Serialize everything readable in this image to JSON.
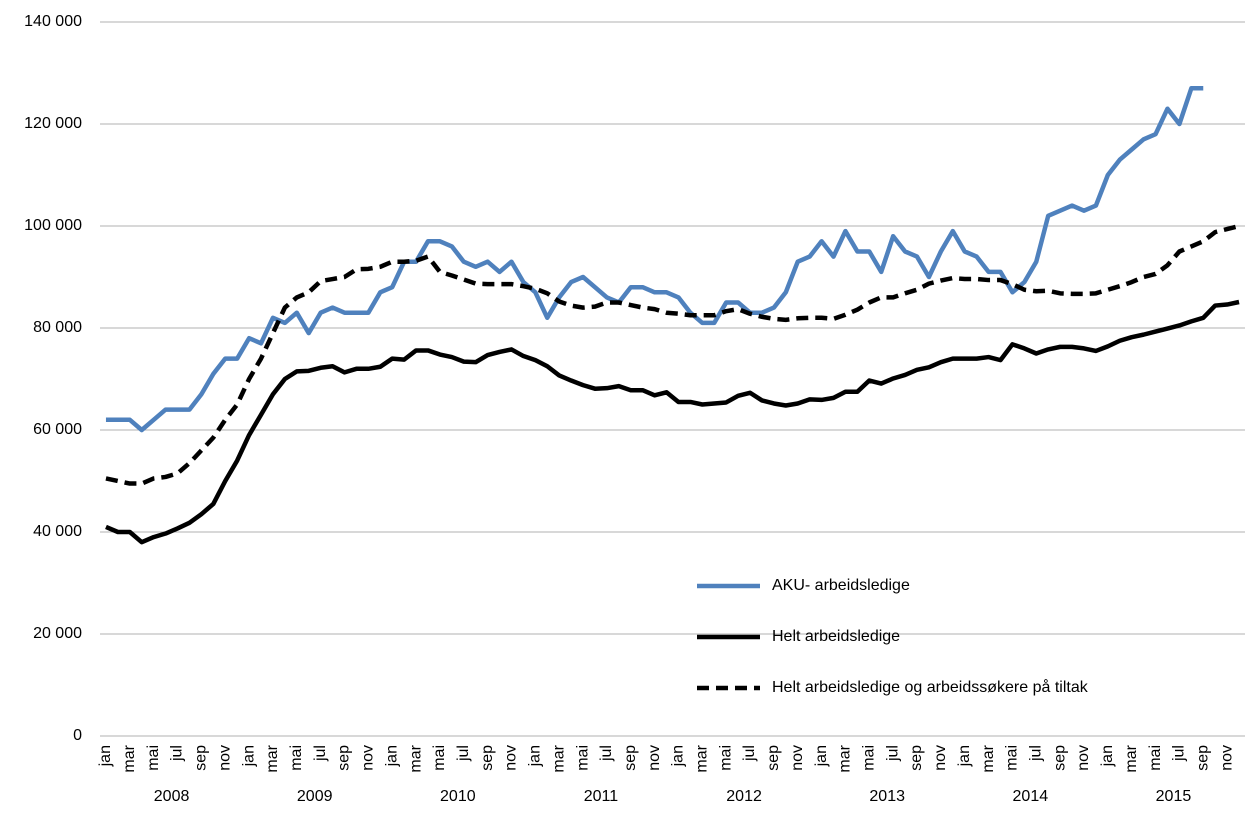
{
  "chart_data": {
    "type": "line",
    "categories": [
      "jan",
      null,
      "mar",
      null,
      "mai",
      null,
      "jul",
      null,
      "sep",
      null,
      "nov",
      null,
      "jan",
      null,
      "mar",
      null,
      "mai",
      null,
      "jul",
      null,
      "sep",
      null,
      "nov",
      null,
      "jan",
      null,
      "mar",
      null,
      "mai",
      null,
      "jul",
      null,
      "sep",
      null,
      "nov",
      null,
      "jan",
      null,
      "mar",
      null,
      "mai",
      null,
      "jul",
      null,
      "sep",
      null,
      "nov",
      null,
      "jan",
      null,
      "mar",
      null,
      "mai",
      null,
      "jul",
      null,
      "sep",
      null,
      "nov",
      null,
      "jan",
      null,
      "mar",
      null,
      "mai",
      null,
      "jul",
      null,
      "sep",
      null,
      "nov",
      null,
      "jan",
      null,
      "mar",
      null,
      "mai",
      null,
      "jul",
      null,
      "sep",
      null,
      "nov",
      null,
      "jan",
      null,
      "mar",
      null,
      "mai",
      null,
      "jul",
      null,
      "sep",
      null,
      "nov",
      null
    ],
    "groups": [
      "2008",
      "2009",
      "2010",
      "2011",
      "2012",
      "2013",
      "2014",
      "2015"
    ],
    "ylim": [
      0,
      140000
    ],
    "yticks": [
      0,
      {
        "value": 20000,
        "label": "20 000"
      },
      {
        "value": 40000,
        "label": "40 000"
      },
      {
        "value": 60000,
        "label": "60 000"
      },
      {
        "value": 80000,
        "label": "80 000"
      },
      {
        "value": 100000,
        "label": "100 000"
      },
      {
        "value": 120000,
        "label": "120 000"
      },
      {
        "value": 140000,
        "label": "140 000"
      }
    ],
    "grid": true,
    "series": [
      {
        "name": "AKU- arbeidsledige",
        "color": "#4f81bd",
        "dash": false,
        "values": [
          62000,
          62000,
          62000,
          60000,
          62000,
          64000,
          64000,
          64000,
          67000,
          71000,
          74000,
          74000,
          78000,
          77000,
          82000,
          81000,
          83000,
          79000,
          83000,
          84000,
          83000,
          83000,
          83000,
          87000,
          88000,
          93000,
          93000,
          97000,
          97000,
          96000,
          93000,
          92000,
          93000,
          91000,
          93000,
          89000,
          87000,
          82000,
          86000,
          89000,
          90000,
          88000,
          86000,
          85000,
          88000,
          88000,
          87000,
          87000,
          86000,
          83000,
          81000,
          81000,
          85000,
          85000,
          83000,
          83000,
          84000,
          87000,
          93000,
          94000,
          97000,
          94000,
          99000,
          95000,
          95000,
          91000,
          98000,
          95000,
          94000,
          90000,
          95000,
          99000,
          95000,
          94000,
          91000,
          91000,
          87000,
          89000,
          93000,
          102000,
          103000,
          104000,
          103000,
          104000,
          110000,
          113000,
          115000,
          117000,
          118000,
          123000,
          120000,
          127000,
          127000,
          null,
          null,
          null
        ]
      },
      {
        "name": "Helt arbeidsledige",
        "color": "#000000",
        "dash": false,
        "values": [
          41000,
          40000,
          40000,
          38000,
          39000,
          39700,
          40700,
          41800,
          43500,
          45500,
          50000,
          54000,
          59000,
          63000,
          67000,
          70000,
          71500,
          71600,
          72200,
          72500,
          71300,
          72000,
          72000,
          72400,
          74000,
          73800,
          75600,
          75600,
          74800,
          74300,
          73400,
          73300,
          74700,
          75300,
          75800,
          74500,
          73700,
          72500,
          70700,
          69700,
          68800,
          68100,
          68200,
          68600,
          67800,
          67800,
          66800,
          67400,
          65500,
          65500,
          65000,
          65200,
          65400,
          66700,
          67300,
          65800,
          65200,
          64800,
          65200,
          66000,
          65900,
          66300,
          67500,
          67500,
          69700,
          69100,
          70100,
          70800,
          71800,
          72300,
          73300,
          74000,
          74000,
          74000,
          74300,
          73700,
          76800,
          76000,
          75000,
          75800,
          76300,
          76300,
          76000,
          75500,
          76400,
          77500,
          78200,
          78700,
          79300,
          79900,
          80500,
          81300,
          82000,
          84400,
          84600,
          85100
        ]
      },
      {
        "name": "Helt arbeidsledige og arbeidssøkere på tiltak",
        "color": "#000000",
        "dash": true,
        "values": [
          50500,
          50000,
          49500,
          49500,
          50500,
          50800,
          51500,
          53500,
          56000,
          58500,
          62000,
          65000,
          70000,
          74000,
          79000,
          84000,
          86000,
          87000,
          89200,
          89600,
          90000,
          91500,
          91600,
          92000,
          93000,
          93000,
          93200,
          94000,
          91000,
          90300,
          89500,
          88700,
          88600,
          88600,
          88600,
          88200,
          87700,
          86800,
          85200,
          84400,
          84000,
          84200,
          85000,
          85000,
          84500,
          84000,
          83700,
          83000,
          82800,
          82500,
          82500,
          82500,
          83300,
          83700,
          82800,
          82200,
          81800,
          81600,
          81900,
          82000,
          82000,
          81800,
          82600,
          83600,
          85000,
          86000,
          86000,
          86800,
          87500,
          88700,
          89300,
          89800,
          89600,
          89600,
          89400,
          89400,
          88600,
          87500,
          87200,
          87300,
          86800,
          86700,
          86700,
          86800,
          87500,
          88200,
          89000,
          90000,
          90600,
          92300,
          95000,
          96000,
          97000,
          98800,
          99400,
          100000
        ]
      }
    ]
  }
}
